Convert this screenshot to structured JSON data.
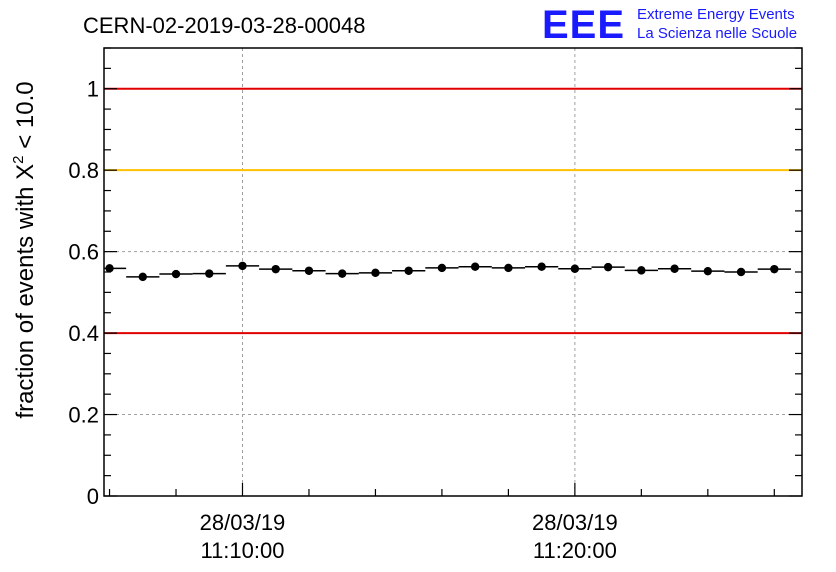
{
  "header": {
    "run_title": "CERN-02-2019-03-28-00048",
    "logo": {
      "mark": "EEE",
      "line1": "Extreme Energy Events",
      "line2": "La Scienza nelle Scuole",
      "color": "#1a1aff"
    }
  },
  "chart_data": {
    "type": "scatter",
    "title": "",
    "ylabel_main": "fraction of events with X",
    "ylabel_sup": "2",
    "ylabel_tail": " < 10.0",
    "xlabel": "",
    "ylim": [
      0,
      1.1
    ],
    "xlim": [
      "2019-03-28 11:05:50",
      "2019-03-28 11:26:50"
    ],
    "grid": true,
    "y_ticks": [
      {
        "value": 0,
        "label": "0"
      },
      {
        "value": 0.2,
        "label": "0.2"
      },
      {
        "value": 0.4,
        "label": "0.4"
      },
      {
        "value": 0.6,
        "label": "0.6"
      },
      {
        "value": 0.8,
        "label": "0.8"
      },
      {
        "value": 1,
        "label": "1"
      }
    ],
    "x_ticks": [
      {
        "value": "2019-03-28 11:10:00",
        "date": "28/03/19",
        "time": "11:10:00"
      },
      {
        "value": "2019-03-28 11:20:00",
        "date": "28/03/19",
        "time": "11:20:00"
      }
    ],
    "reference_lines": [
      {
        "y": 1.0,
        "color": "#e00000"
      },
      {
        "y": 0.8,
        "color": "#ffc000"
      },
      {
        "y": 0.4,
        "color": "#e00000"
      }
    ],
    "series": [
      {
        "color": "#000000",
        "bin_width_s": 60,
        "x": [
          "2019-03-28 11:06:00",
          "2019-03-28 11:07:00",
          "2019-03-28 11:08:00",
          "2019-03-28 11:09:00",
          "2019-03-28 11:10:00",
          "2019-03-28 11:11:00",
          "2019-03-28 11:12:00",
          "2019-03-28 11:13:00",
          "2019-03-28 11:14:00",
          "2019-03-28 11:15:00",
          "2019-03-28 11:16:00",
          "2019-03-28 11:17:00",
          "2019-03-28 11:18:00",
          "2019-03-28 11:19:00",
          "2019-03-28 11:20:00",
          "2019-03-28 11:21:00",
          "2019-03-28 11:22:00",
          "2019-03-28 11:23:00",
          "2019-03-28 11:24:00",
          "2019-03-28 11:25:00",
          "2019-03-28 11:26:00"
        ],
        "values": [
          0.559,
          0.538,
          0.545,
          0.546,
          0.565,
          0.557,
          0.553,
          0.546,
          0.548,
          0.553,
          0.56,
          0.563,
          0.56,
          0.563,
          0.558,
          0.562,
          0.554,
          0.558,
          0.552,
          0.55,
          0.557
        ]
      }
    ]
  }
}
